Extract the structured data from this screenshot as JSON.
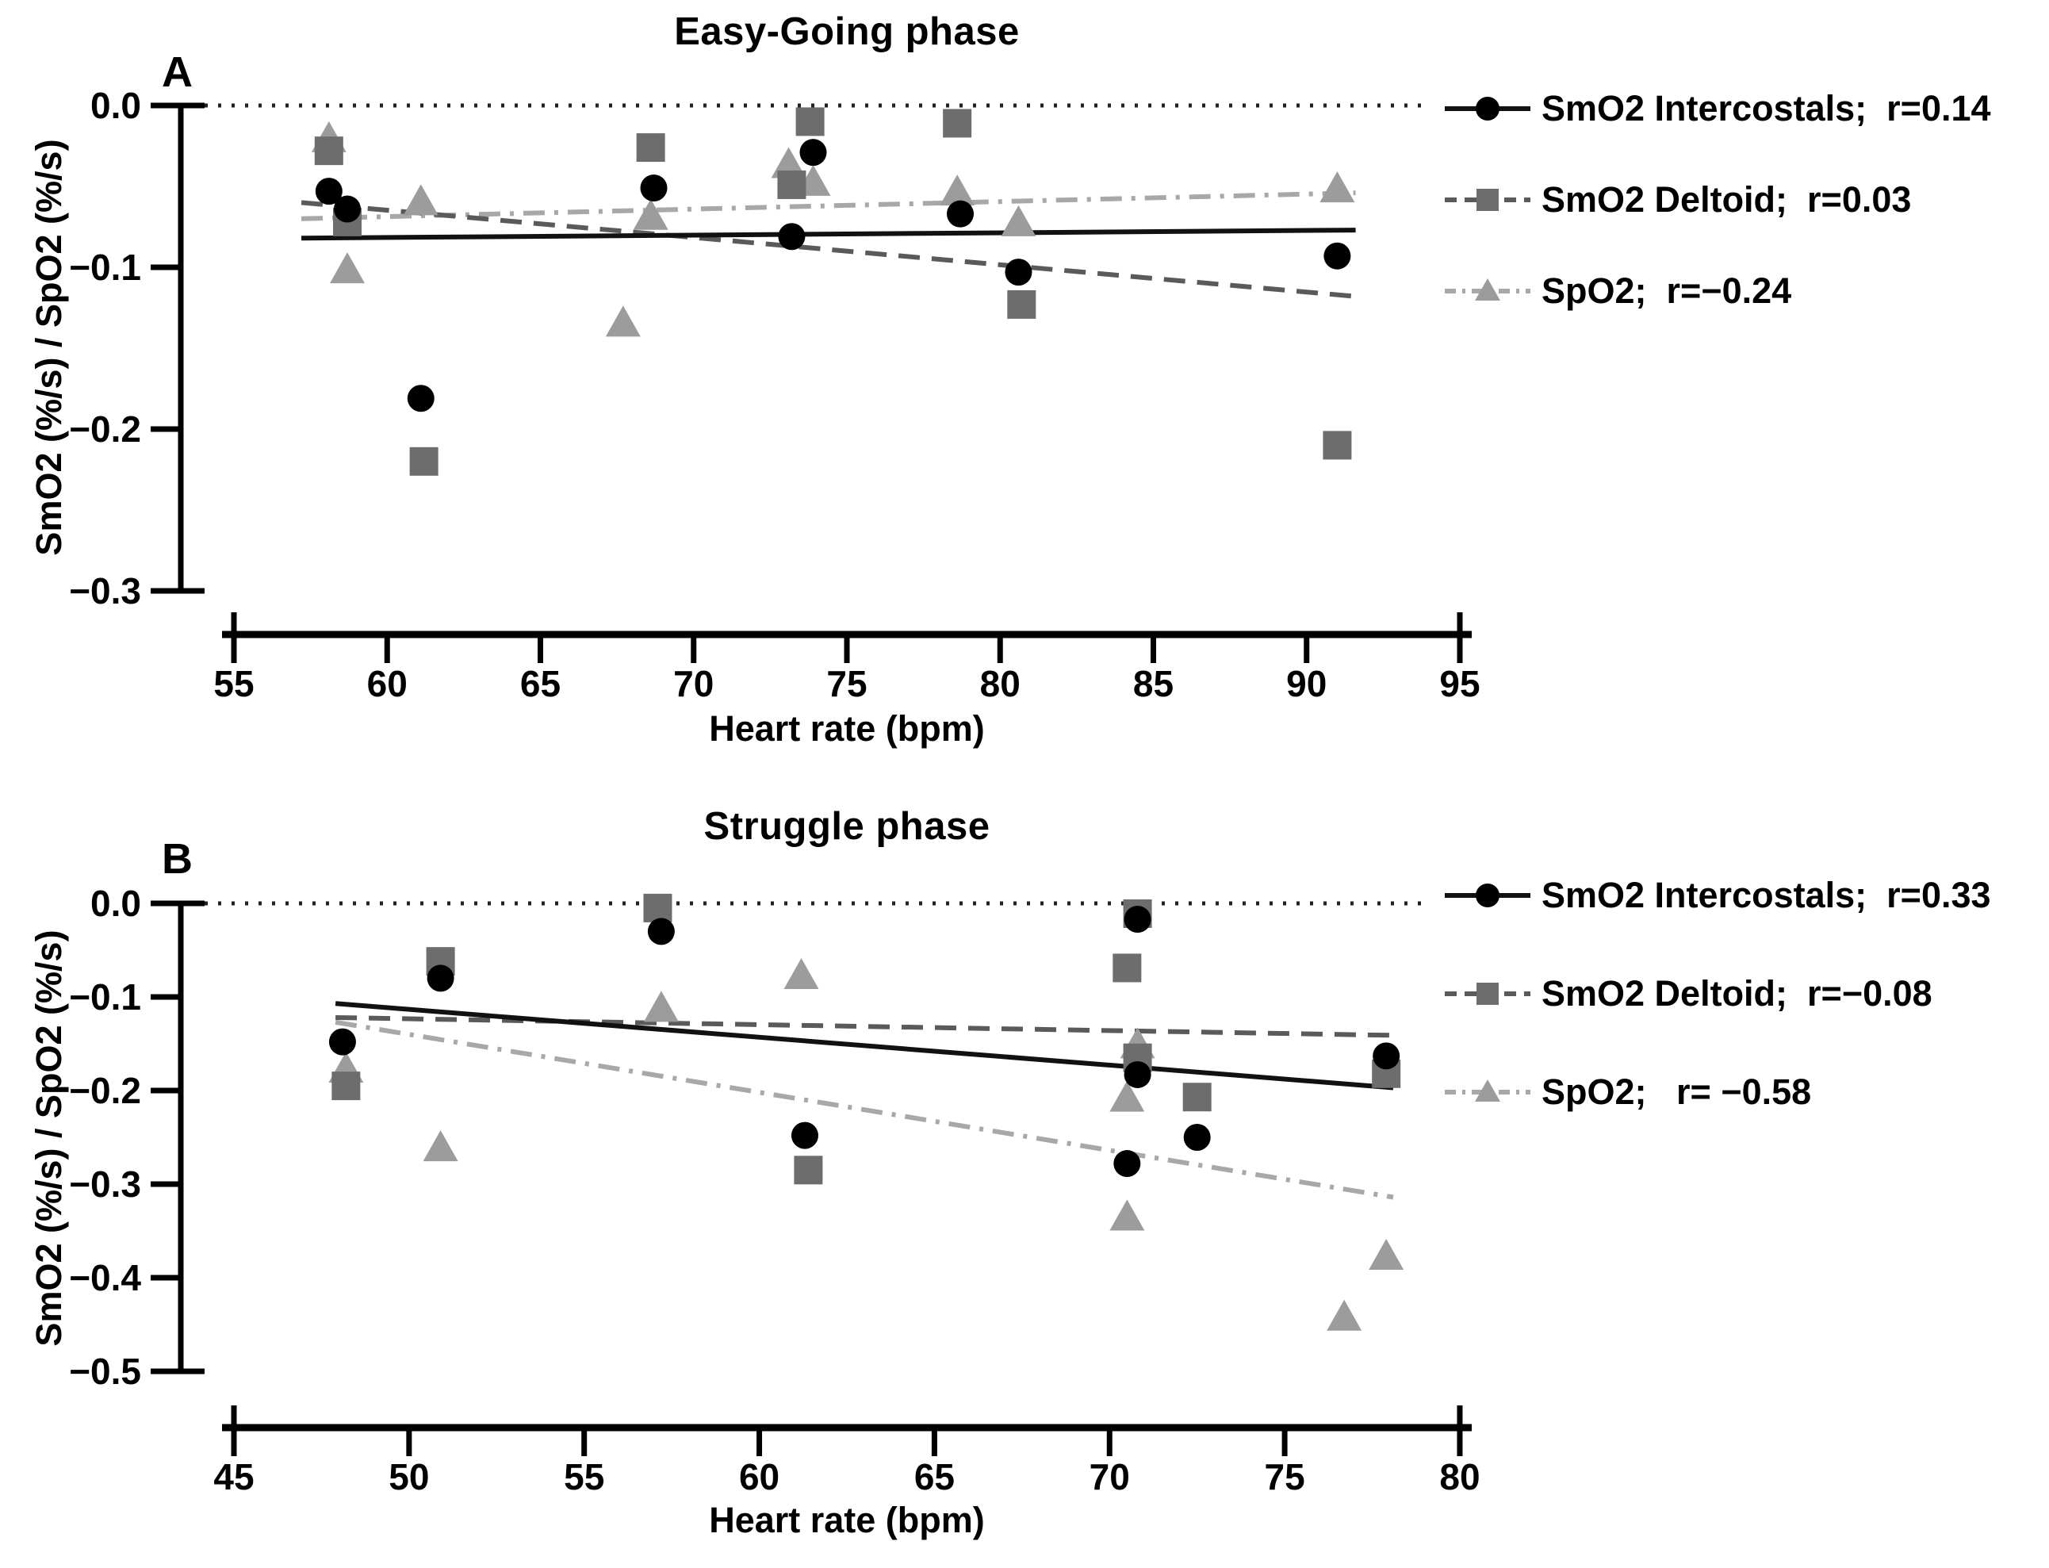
{
  "figure": {
    "background": "#ffffff",
    "axis_color": "#000000",
    "zero_line_color": "#222222"
  },
  "chart_data": [
    {
      "type": "scatter",
      "panel_label": "A",
      "title": "Easy-Going phase",
      "xlabel": "Heart rate (bpm)",
      "ylabel": "SmO2 (%/s) / SpO2  (%/s)",
      "xlim": [
        55,
        95
      ],
      "ylim": [
        -0.3,
        0.0
      ],
      "x_ticks": [
        55,
        60,
        65,
        70,
        75,
        80,
        85,
        90,
        95
      ],
      "x_tick_labels": [
        "55",
        "60",
        "65",
        "70",
        "75",
        "80",
        "85",
        "90",
        "95"
      ],
      "y_ticks": [
        0.0,
        -0.1,
        -0.2,
        -0.3
      ],
      "y_tick_labels": [
        "0.0",
        "−0.1",
        "−0.2",
        "−0.3"
      ],
      "zero_line": true,
      "legend_position": "right",
      "grid": false,
      "series": [
        {
          "name": "SmO2 Intercostals",
          "legend_label": "SmO2 Intercostals;  r=0.14",
          "r": 0.14,
          "marker": "circle",
          "marker_color": "#000000",
          "line_style": "solid",
          "line_color": "#111111",
          "points": [
            [
              58.1,
              -0.053
            ],
            [
              58.7,
              -0.064
            ],
            [
              61.1,
              -0.181
            ],
            [
              68.7,
              -0.051
            ],
            [
              73.2,
              -0.081
            ],
            [
              73.9,
              -0.029
            ],
            [
              78.7,
              -0.067
            ],
            [
              80.6,
              -0.103
            ],
            [
              91.0,
              -0.093
            ]
          ],
          "trend": {
            "x1": 57.2,
            "y1": -0.082,
            "x2": 91.6,
            "y2": -0.077
          }
        },
        {
          "name": "SmO2 Deltoid",
          "legend_label": "SmO2 Deltoid;  r=0.03",
          "r": 0.03,
          "marker": "square",
          "marker_color": "#6d6d6d",
          "line_style": "dashed",
          "line_color": "#5a5a5a",
          "points": [
            [
              58.1,
              -0.028
            ],
            [
              58.7,
              -0.072
            ],
            [
              61.2,
              -0.22
            ],
            [
              68.6,
              -0.026
            ],
            [
              73.2,
              -0.049
            ],
            [
              73.8,
              -0.01
            ],
            [
              78.6,
              -0.011
            ],
            [
              80.7,
              -0.123
            ],
            [
              91.0,
              -0.21
            ]
          ],
          "trend": {
            "x1": 57.2,
            "y1": -0.06,
            "x2": 91.6,
            "y2": -0.118
          }
        },
        {
          "name": "SpO2",
          "legend_label": "SpO2;  r=−0.24",
          "r": -0.24,
          "marker": "triangle",
          "marker_color": "#9c9c9c",
          "line_style": "dashdot",
          "line_color": "#a8a8a8",
          "points": [
            [
              58.1,
              -0.021
            ],
            [
              58.7,
              -0.102
            ],
            [
              61.1,
              -0.06
            ],
            [
              67.7,
              -0.135
            ],
            [
              68.6,
              -0.069
            ],
            [
              73.1,
              -0.037
            ],
            [
              73.9,
              -0.048
            ],
            [
              78.6,
              -0.054
            ],
            [
              80.6,
              -0.073
            ],
            [
              91.0,
              -0.052
            ]
          ],
          "trend": {
            "x1": 57.2,
            "y1": -0.07,
            "x2": 91.6,
            "y2": -0.054
          }
        }
      ]
    },
    {
      "type": "scatter",
      "panel_label": "B",
      "title": "Struggle phase",
      "xlabel": "Heart rate (bpm)",
      "ylabel": "SmO2 (%/s) / SpO2  (%/s)",
      "xlim": [
        45,
        80
      ],
      "ylim": [
        -0.5,
        0.0
      ],
      "x_ticks": [
        45,
        50,
        55,
        60,
        65,
        70,
        75,
        80
      ],
      "x_tick_labels": [
        "45",
        "50",
        "55",
        "60",
        "65",
        "70",
        "75",
        "80"
      ],
      "y_ticks": [
        0.0,
        -0.1,
        -0.2,
        -0.3,
        -0.4,
        -0.5
      ],
      "y_tick_labels": [
        "0.0",
        "−0.1",
        "−0.2",
        "−0.3",
        "−0.4",
        "−0.5"
      ],
      "zero_line": true,
      "legend_position": "right",
      "grid": false,
      "series": [
        {
          "name": "SmO2 Intercostals",
          "legend_label": "SmO2 Intercostals;  r=0.33",
          "r": 0.33,
          "marker": "circle",
          "marker_color": "#000000",
          "line_style": "solid",
          "line_color": "#111111",
          "points": [
            [
              48.1,
              -0.148
            ],
            [
              50.9,
              -0.08
            ],
            [
              57.2,
              -0.03
            ],
            [
              61.3,
              -0.248
            ],
            [
              70.8,
              -0.017
            ],
            [
              70.8,
              -0.183
            ],
            [
              70.5,
              -0.278
            ],
            [
              72.5,
              -0.25
            ],
            [
              77.9,
              -0.163
            ]
          ],
          "trend": {
            "x1": 47.9,
            "y1": -0.107,
            "x2": 78.1,
            "y2": -0.197
          }
        },
        {
          "name": "SmO2 Deltoid",
          "legend_label": "SmO2 Deltoid;  r=−0.08",
          "r": -0.08,
          "marker": "square",
          "marker_color": "#6d6d6d",
          "line_style": "dashed",
          "line_color": "#5a5a5a",
          "points": [
            [
              48.2,
              -0.195
            ],
            [
              50.9,
              -0.062
            ],
            [
              57.1,
              -0.005
            ],
            [
              61.4,
              -0.285
            ],
            [
              70.8,
              -0.011
            ],
            [
              70.5,
              -0.069
            ],
            [
              70.8,
              -0.165
            ],
            [
              72.5,
              -0.207
            ],
            [
              77.9,
              -0.182
            ]
          ],
          "trend": {
            "x1": 47.9,
            "y1": -0.122,
            "x2": 78.1,
            "y2": -0.141
          }
        },
        {
          "name": "SpO2",
          "legend_label": "SpO2;   r= −0.58",
          "r": -0.58,
          "marker": "triangle",
          "marker_color": "#9c9c9c",
          "line_style": "dashdot",
          "line_color": "#a8a8a8",
          "points": [
            [
              48.2,
              -0.178
            ],
            [
              50.9,
              -0.262
            ],
            [
              57.2,
              -0.113
            ],
            [
              61.2,
              -0.078
            ],
            [
              70.8,
              -0.152
            ],
            [
              70.5,
              -0.209
            ],
            [
              70.5,
              -0.336
            ],
            [
              76.7,
              -0.443
            ],
            [
              77.9,
              -0.378
            ]
          ],
          "trend": {
            "x1": 47.9,
            "y1": -0.127,
            "x2": 78.1,
            "y2": -0.314
          }
        }
      ]
    }
  ]
}
